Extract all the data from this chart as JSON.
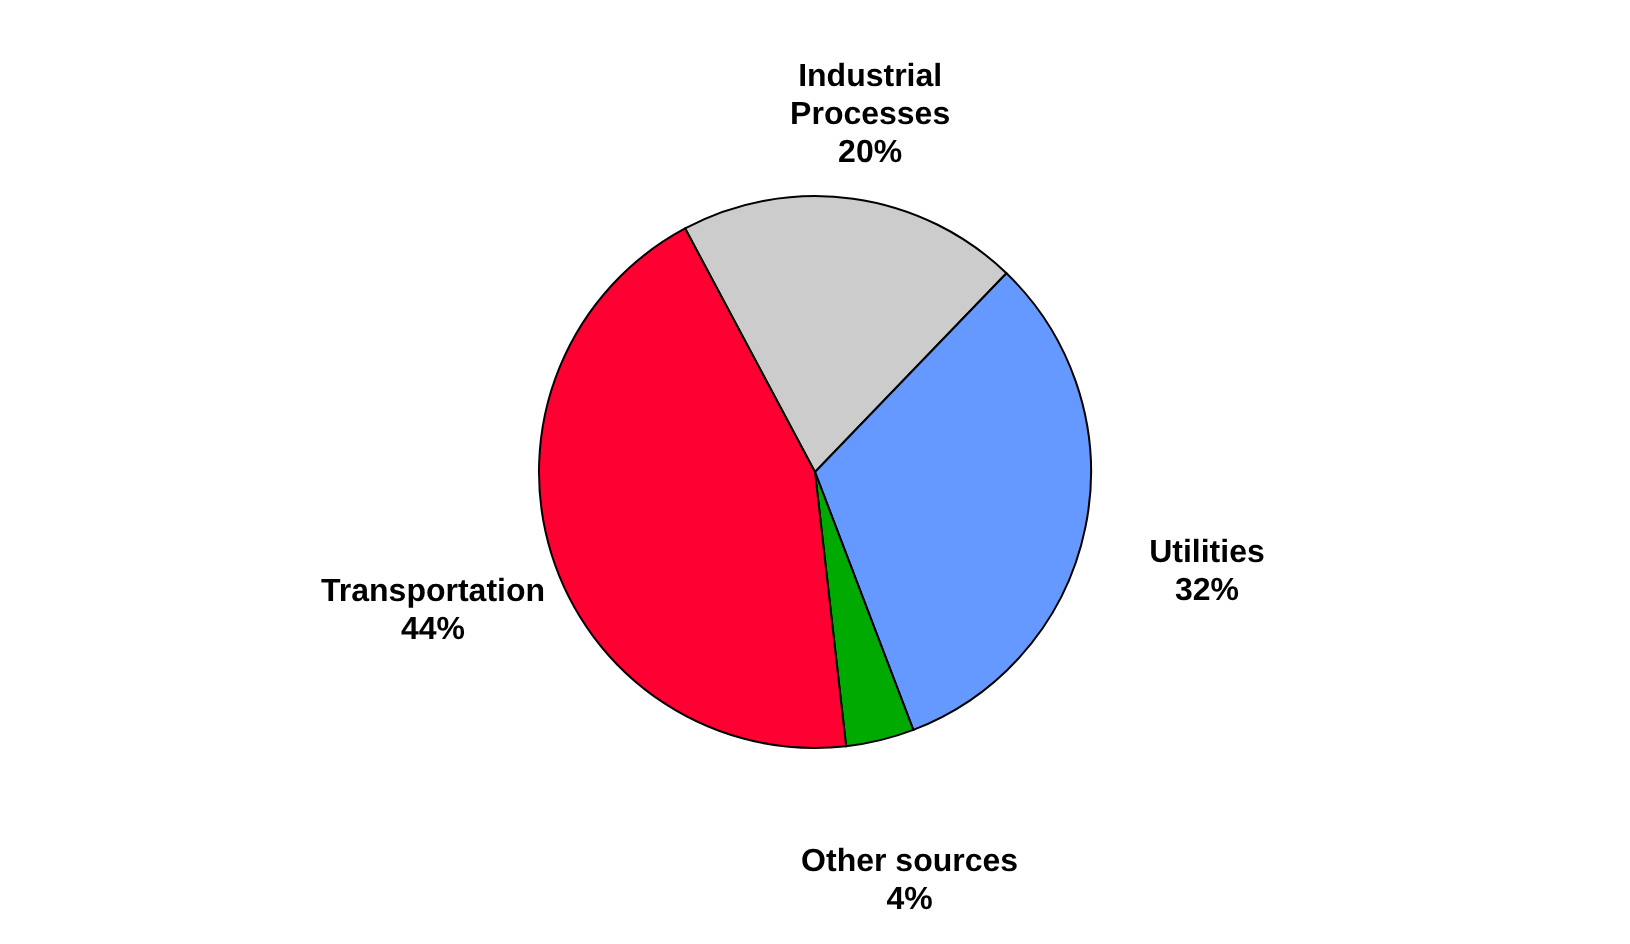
{
  "chart_data": {
    "type": "pie",
    "categories": [
      "Industrial Processes",
      "Utilities",
      "Other sources",
      "Transportation"
    ],
    "values": [
      20,
      32,
      4,
      44
    ],
    "colors": [
      "#cccccc",
      "#6699ff",
      "#00aa00",
      "#ff0033"
    ],
    "value_labels": [
      "20%",
      "32%",
      "4%",
      "44%"
    ]
  }
}
